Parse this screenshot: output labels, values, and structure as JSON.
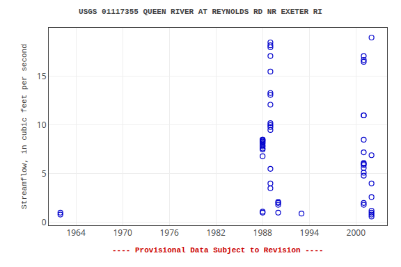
{
  "chart_data": {
    "type": "scatter",
    "title": "USGS 01117355 QUEEN RIVER AT REYNOLDS RD NR EXETER RI",
    "ylabel": "Streamflow, in cubic feet per second",
    "annotations": [
      {
        "text": "---- Provisional Data Subject to Revision ----",
        "color": "#cc0000"
      }
    ],
    "x": [
      1962,
      1962,
      1988,
      1988,
      1988,
      1988,
      1988,
      1988,
      1988,
      1988,
      1988,
      1988,
      1988,
      1988,
      1988,
      1989,
      1989,
      1989,
      1989,
      1989,
      1989,
      1989,
      1989,
      1989,
      1989,
      1989,
      1989,
      1989,
      1989,
      1989,
      1990,
      1990,
      1990,
      1990,
      1993,
      2001,
      2001,
      2001,
      2001,
      2001,
      2001,
      2001,
      2001,
      2001,
      2001,
      2001,
      2001,
      2001,
      2001,
      2001,
      2002,
      2002,
      2002,
      2002,
      2002,
      2002,
      2002,
      2002
    ],
    "values": [
      0.8,
      1.0,
      8.5,
      8.5,
      8.4,
      8.3,
      8.2,
      8.1,
      7.9,
      7.8,
      7.6,
      7.5,
      6.8,
      1.1,
      1.0,
      18.5,
      18.2,
      18.0,
      17.1,
      15.5,
      13.3,
      13.1,
      12.1,
      10.2,
      10.0,
      9.8,
      9.5,
      5.5,
      4.0,
      3.5,
      2.1,
      2.0,
      1.8,
      1.0,
      0.9,
      17.1,
      16.7,
      16.5,
      11.0,
      11.0,
      8.5,
      7.2,
      6.1,
      6.0,
      5.9,
      5.6,
      5.1,
      4.8,
      2.0,
      1.8,
      19.0,
      6.9,
      4.0,
      2.6,
      1.2,
      1.0,
      0.8,
      0.6
    ],
    "color": "#0000cc",
    "marker": "circle-open",
    "xlim": [
      1960.5,
      2004
    ],
    "ylim": [
      -0.3,
      20
    ],
    "xticks": [
      1964,
      1970,
      1976,
      1982,
      1988,
      1994,
      2000
    ],
    "yticks": [
      0,
      5,
      10,
      15
    ],
    "grid": true
  }
}
